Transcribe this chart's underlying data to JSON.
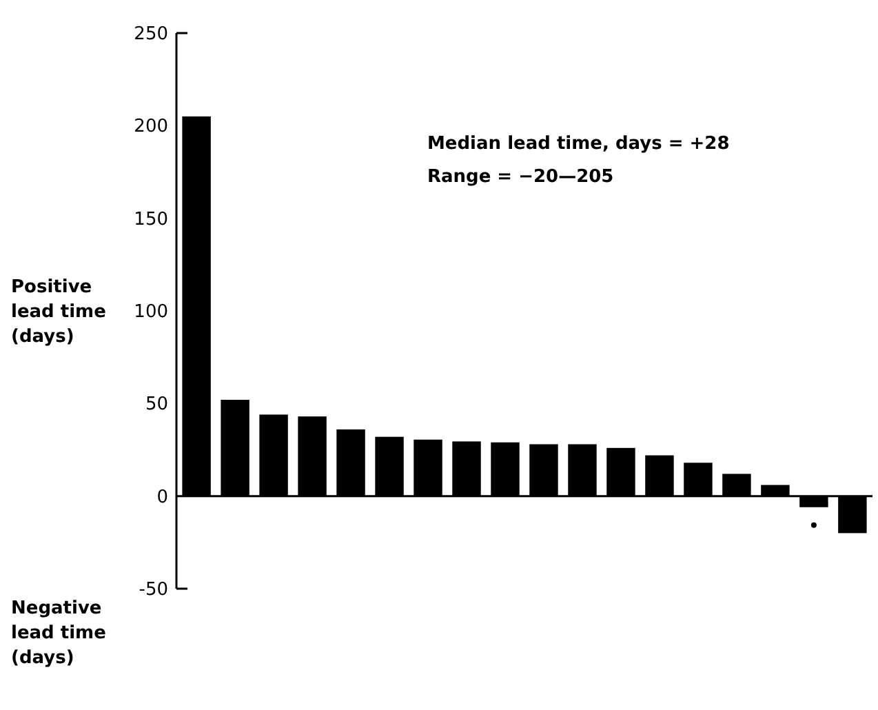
{
  "chart_data": {
    "type": "bar",
    "categories": [
      null,
      null,
      null,
      null,
      null,
      null,
      null,
      null,
      null,
      null,
      null,
      null,
      null,
      null,
      null,
      null,
      null,
      null
    ],
    "values": [
      205,
      52,
      44,
      43,
      36,
      32,
      30.5,
      29.5,
      29,
      28,
      28,
      26,
      22,
      18,
      12,
      6,
      -6,
      -20
    ],
    "color": "#000000",
    "ylim": [
      -50,
      250
    ],
    "yticks": [
      -50,
      0,
      50,
      100,
      150,
      200,
      250
    ],
    "annotations": [
      "Median lead time, days = +28",
      "Range = −20—205",
      "Positive\nlead time\n(days)",
      "Negative\nlead time\n(days)"
    ]
  }
}
